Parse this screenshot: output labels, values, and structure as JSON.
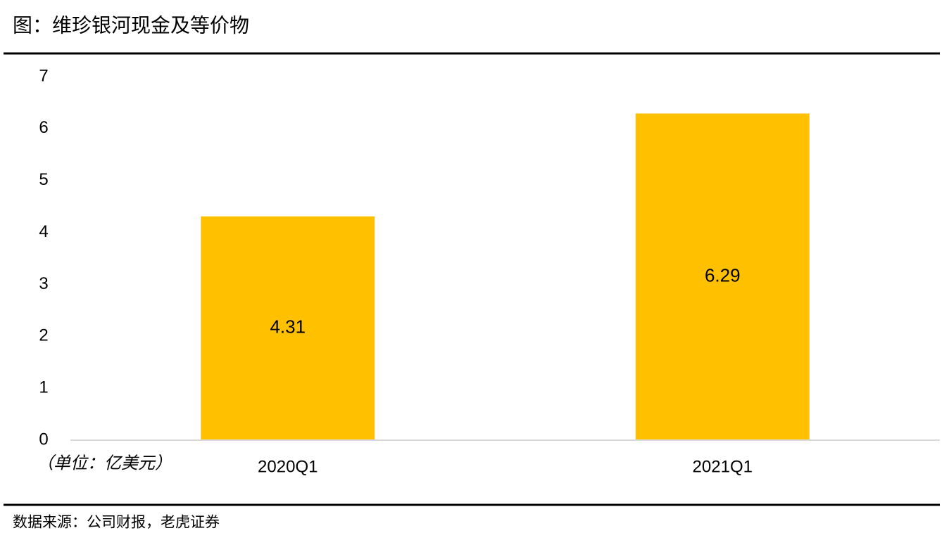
{
  "chart_data": {
    "type": "bar",
    "title": "图：维珍银河现金及等价物",
    "unit_note": "（单位：亿美元）",
    "source": "数据来源：公司财报，老虎证券",
    "categories": [
      "2020Q1",
      "2021Q1"
    ],
    "values": [
      4.31,
      6.29
    ],
    "color": "#ffc000",
    "ylim": [
      0,
      7
    ],
    "yticks": [
      0,
      1,
      2,
      3,
      4,
      5,
      6,
      7
    ],
    "grid": false
  }
}
